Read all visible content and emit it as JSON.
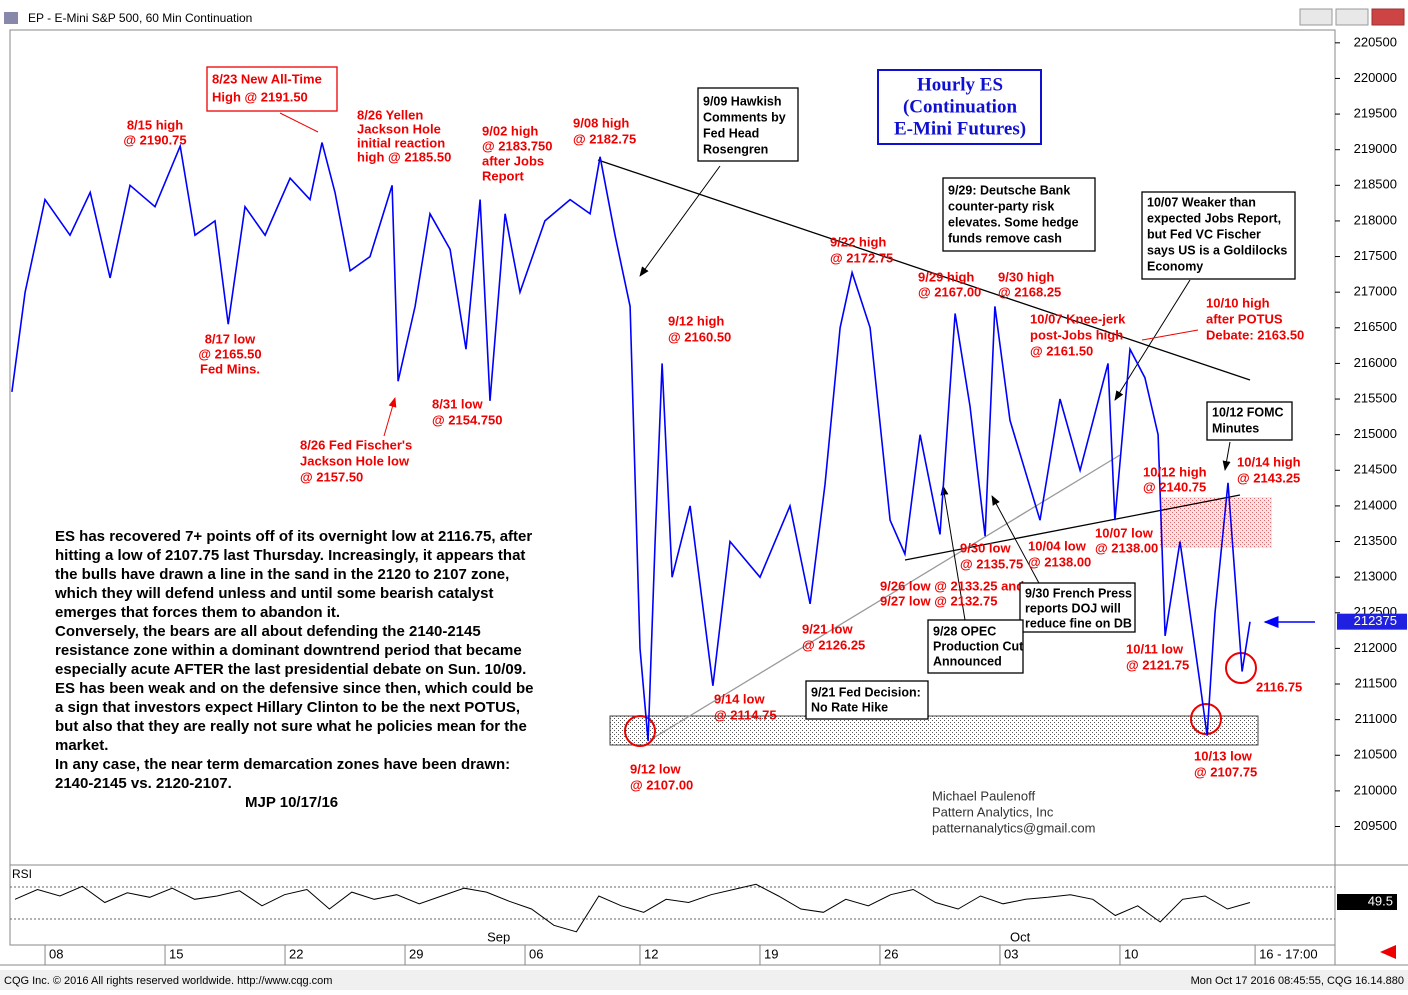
{
  "header": {
    "title": "EP - E-Mini S&P 500, 60 Min Continuation"
  },
  "chart_data": {
    "type": "line",
    "x": [
      -1.38,
      -0.83,
      0,
      1.04,
      1.88,
      2.71,
      3.54,
      4.58,
      5.63,
      6.25,
      7.08,
      7.63,
      8.33,
      9.17,
      10.21,
      11.04,
      11.54,
      12.08,
      12.71,
      13.54,
      14.46,
      14.71,
      15.42,
      16.04,
      16.88,
      17.54,
      18.13,
      18.54,
      19.17,
      19.79,
      20.83,
      21.88,
      22.71,
      23.13,
      23.75,
      24.38,
      24.79,
      25.13,
      25.42,
      25.71,
      26.13,
      26.88,
      27.83,
      28.54,
      29.79,
      31.04,
      31.88,
      32.5,
      33.13,
      33.63,
      34.38,
      35.21,
      35.83,
      36.46,
      37.29,
      37.92,
      38.54,
      39.17,
      39.58,
      40.21,
      41.46,
      42.29,
      43.13,
      43.75,
      44.29,
      44.58,
      45.21,
      45.83,
      46.38,
      46.67,
      47.29,
      48.13,
      48.42,
      48.75,
      49.29,
      49.63,
      49.88,
      50.21
    ],
    "values": [
      215600,
      217000,
      218300,
      217800,
      218400,
      217200,
      218500,
      218200,
      219050,
      217800,
      218000,
      216550,
      218200,
      217800,
      218600,
      218300,
      219100,
      218400,
      217300,
      217500,
      218500,
      215750,
      216800,
      218100,
      217600,
      216200,
      218300,
      215475,
      218100,
      217000,
      218000,
      218300,
      218100,
      218900,
      217800,
      216800,
      212000,
      210700,
      213500,
      216000,
      213000,
      214000,
      211475,
      213500,
      213000,
      214000,
      212625,
      214300,
      216500,
      217275,
      216500,
      213800,
      213325,
      215000,
      213600,
      216700,
      215400,
      213575,
      216800,
      215200,
      213800,
      215500,
      214500,
      215300,
      216000,
      213800,
      216200,
      215800,
      215000,
      212175,
      213500,
      211500,
      210775,
      212500,
      214325,
      212800,
      211675,
      212375
    ],
    "color": "#0000ff",
    "xlim": [
      -1.46,
      53.75
    ],
    "ylim": [
      209100,
      220680
    ],
    "xticks": [
      {
        "value": 0,
        "label": "08"
      },
      {
        "value": 5,
        "label": "15"
      },
      {
        "value": 10,
        "label": "22"
      },
      {
        "value": 15,
        "label": "29"
      },
      {
        "value": 20,
        "label": "06"
      },
      {
        "value": 24.79,
        "label": "12"
      },
      {
        "value": 29.79,
        "label": "19"
      },
      {
        "value": 34.79,
        "label": "26"
      },
      {
        "value": 39.79,
        "label": "03"
      },
      {
        "value": 44.79,
        "label": "10"
      },
      {
        "value": 50.42,
        "label": "16 - 17:00"
      }
    ],
    "month_labels": [
      {
        "value": 18.42,
        "label": "Sep"
      },
      {
        "value": 40.21,
        "label": "Oct"
      }
    ],
    "yticks": [
      209500,
      210000,
      210500,
      211000,
      211500,
      212000,
      212500,
      213000,
      213500,
      214000,
      214500,
      215000,
      215500,
      216000,
      216500,
      217000,
      217500,
      218000,
      218500,
      219000,
      219500,
      220000,
      220500
    ],
    "last_price": 212375
  },
  "rsi": {
    "label": "RSI",
    "last_label": "49.5",
    "ylim": [
      0,
      100
    ],
    "values": [
      55,
      70,
      60,
      75,
      50,
      65,
      58,
      72,
      55,
      60,
      68,
      45,
      62,
      70,
      40,
      66,
      55,
      62,
      48,
      60,
      72,
      66,
      52,
      40,
      15,
      5,
      60,
      45,
      35,
      55,
      50,
      62,
      70,
      78,
      60,
      40,
      35,
      55,
      45,
      62,
      70,
      50,
      40,
      60,
      48,
      55,
      58,
      62,
      55,
      30,
      45,
      20,
      55,
      60,
      40,
      50
    ]
  },
  "annotations": [
    [
      "8/15 high",
      "@ 2190.75"
    ],
    [
      "8/23 New All-Time",
      "High @ 2191.50"
    ],
    [
      "8/26 Yellen",
      "Jackson Hole",
      "initial reaction",
      "high @ 2185.50"
    ],
    [
      "9/02 high",
      "@ 2183.750",
      "after Jobs",
      "Report"
    ],
    [
      "9/08 high",
      "@ 2182.75"
    ],
    [
      "8/17 low",
      "@ 2165.50",
      "Fed Mins."
    ],
    [
      "8/26 Fed Fischer's",
      "Jackson Hole low",
      "@ 2157.50"
    ],
    [
      "8/31 low",
      "@ 2154.750"
    ],
    [
      "9/12 high",
      "@ 2160.50"
    ],
    [
      "9/22 high",
      "@ 2172.75"
    ],
    [
      "9/29 high",
      "@ 2167.00"
    ],
    [
      "9/30 high",
      "@ 2168.25"
    ],
    [
      "10/07 Knee-jerk",
      "post-Jobs high",
      "@ 2161.50"
    ],
    [
      "10/10 high",
      "after POTUS",
      "Debate: 2163.50"
    ],
    [
      "10/12 high",
      "@ 2140.75"
    ],
    [
      "10/14 high",
      "@ 2143.25"
    ],
    [
      "9/30 low",
      "@ 2135.75"
    ],
    [
      "10/04 low",
      "@ 2138.00"
    ],
    [
      "10/07 low",
      "@ 2138.00"
    ],
    [
      "9/26 low @ 2133.25 and",
      "9/27 low @ 2132.75"
    ],
    [
      "9/21 low",
      "@ 2126.25"
    ],
    [
      "9/14 low",
      "@ 2114.75"
    ],
    [
      "9/12 low",
      "@ 2107.00"
    ],
    [
      "10/11 low",
      "@ 2121.75"
    ],
    [
      "2116.75"
    ],
    [
      "10/13 low",
      "@ 2107.75"
    ],
    [
      "9/09 Hawkish",
      "Comments by",
      "Fed Head",
      "Rosengren"
    ],
    [
      "9/29: Deutsche Bank",
      "counter-party risk",
      "elevates. Some hedge",
      "funds remove cash"
    ],
    [
      "10/07 Weaker than",
      "expected Jobs Report,",
      "but Fed VC Fischer",
      "says US is a Goldilocks",
      "Economy"
    ],
    [
      "10/12 FOMC",
      "Minutes"
    ],
    [
      "9/30 French Press",
      "reports DOJ will",
      "reduce fine on DB"
    ],
    [
      "9/28 OPEC",
      "Production Cut",
      "Announced"
    ],
    [
      "9/21 Fed Decision:",
      "No Rate Hike"
    ],
    [
      "Hourly ES",
      "(Continuation",
      "E-Mini Futures)"
    ]
  ],
  "commentary": [
    "ES has recovered 7+ points off of its overnight low at 2116.75, after",
    "hitting a low of 2107.75 last Thursday. Increasingly, it appears that",
    "the bulls have drawn a line in the sand in the 2120 to 2107 zone,",
    "which they will defend unless and until some bearish catalyst",
    "emerges that forces them to abandon it.",
    "   Conversely, the bears are all about defending the 2140-2145",
    "resistance zone within a dominant downtrend period that became",
    "especially acute AFTER the last presidential debate on Sun. 10/09.",
    "ES has been weak and on the defensive since then, which could be",
    "a sign that investors expect Hillary Clinton to be the next POTUS,",
    "but also that they are really not sure what he policies mean for the",
    "market.",
    "  In any case, the near term demarcation zones have been drawn:",
    "2140-2145 vs. 2120-2107."
  ],
  "signature": "MJP 10/17/16",
  "credits": [
    "Michael Paulenoff",
    "Pattern Analytics, Inc",
    "patternanalytics@gmail.com"
  ],
  "footer": {
    "left": "CQG Inc. © 2016 All rights reserved worldwide. http://www.cqg.com",
    "right": "Mon Oct 17 2016 08:45:55, CQG 16.14.880"
  }
}
